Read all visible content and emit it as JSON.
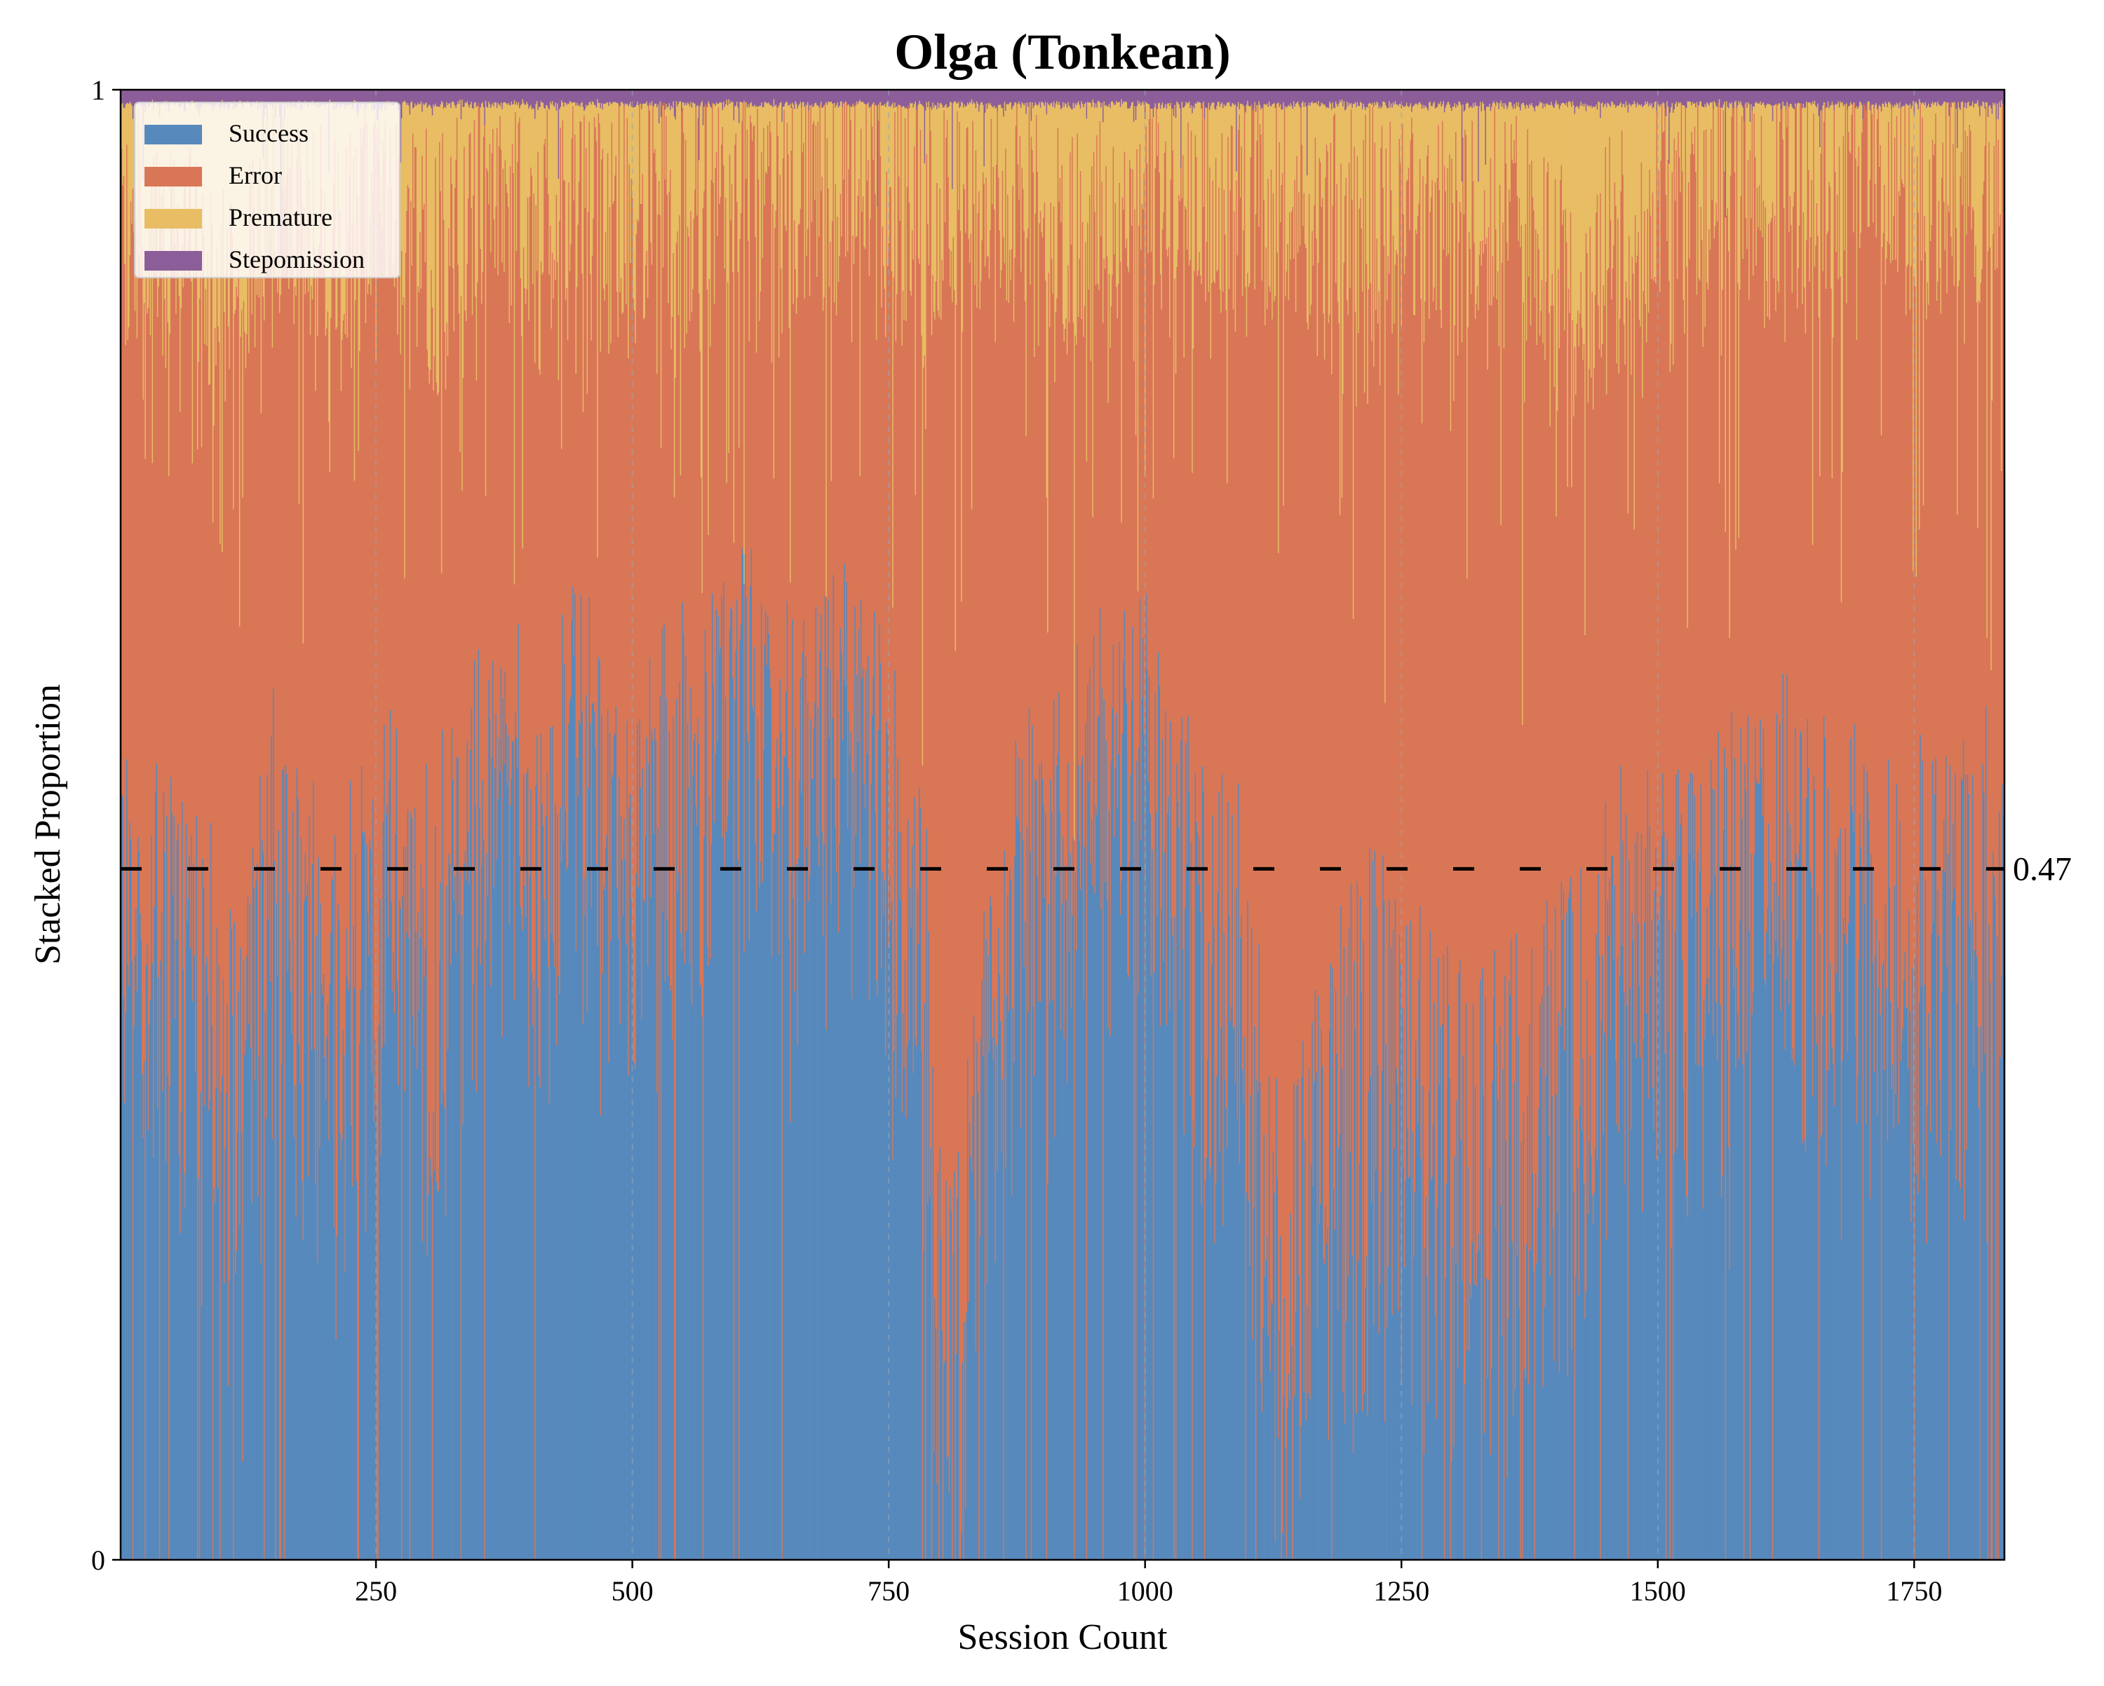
{
  "chart_data": {
    "type": "area",
    "title": "Olga (Tonkean)",
    "xlabel": "Session Count",
    "ylabel": "Stacked Proportion",
    "xlim": [
      1,
      1838
    ],
    "ylim": [
      0,
      1
    ],
    "xticks": [
      250,
      500,
      750,
      1000,
      1250,
      1500,
      1750
    ],
    "xtick_labels": [
      "250",
      "500",
      "750",
      "1000",
      "1250",
      "1500",
      "1750"
    ],
    "yticks": [
      0,
      1
    ],
    "ytick_labels": [
      "0",
      "1"
    ],
    "reference_line": {
      "y": 0.47,
      "label": "0.47",
      "style": "dashed",
      "color": "#000000"
    },
    "vertical_guides": [
      250,
      500,
      750,
      1000,
      1250,
      1500,
      1750
    ],
    "legend_position": "top-left",
    "series_colors": {
      "Success": "#5789bc",
      "Error": "#d97656",
      "Premature": "#e8bd64",
      "Stepomission": "#8c5e99"
    },
    "series_names": [
      "Success",
      "Error",
      "Premature",
      "Stepomission"
    ],
    "profile": {
      "x": [
        1,
        30,
        60,
        90,
        120,
        150,
        180,
        210,
        240,
        270,
        300,
        330,
        360,
        390,
        420,
        450,
        480,
        510,
        540,
        570,
        600,
        630,
        660,
        690,
        720,
        750,
        780,
        800,
        820,
        850,
        880,
        910,
        940,
        970,
        1000,
        1030,
        1060,
        1090,
        1120,
        1150,
        1180,
        1210,
        1240,
        1270,
        1300,
        1330,
        1360,
        1390,
        1420,
        1450,
        1480,
        1510,
        1540,
        1570,
        1600,
        1630,
        1660,
        1690,
        1720,
        1750,
        1780,
        1810,
        1838
      ],
      "success": [
        0.45,
        0.4,
        0.42,
        0.35,
        0.3,
        0.48,
        0.4,
        0.36,
        0.42,
        0.45,
        0.38,
        0.47,
        0.52,
        0.5,
        0.48,
        0.55,
        0.45,
        0.5,
        0.52,
        0.55,
        0.6,
        0.55,
        0.52,
        0.58,
        0.55,
        0.5,
        0.45,
        0.2,
        0.1,
        0.4,
        0.45,
        0.48,
        0.5,
        0.52,
        0.55,
        0.5,
        0.42,
        0.4,
        0.25,
        0.2,
        0.3,
        0.32,
        0.35,
        0.3,
        0.28,
        0.3,
        0.25,
        0.32,
        0.35,
        0.4,
        0.45,
        0.4,
        0.42,
        0.45,
        0.5,
        0.48,
        0.45,
        0.45,
        0.4,
        0.42,
        0.4,
        0.45,
        0.45
      ],
      "error": [
        0.45,
        0.5,
        0.48,
        0.5,
        0.55,
        0.45,
        0.5,
        0.52,
        0.48,
        0.45,
        0.5,
        0.43,
        0.4,
        0.4,
        0.42,
        0.35,
        0.45,
        0.42,
        0.4,
        0.38,
        0.33,
        0.36,
        0.4,
        0.35,
        0.38,
        0.42,
        0.47,
        0.7,
        0.8,
        0.5,
        0.47,
        0.42,
        0.38,
        0.38,
        0.37,
        0.42,
        0.5,
        0.52,
        0.67,
        0.72,
        0.6,
        0.58,
        0.55,
        0.6,
        0.62,
        0.6,
        0.65,
        0.55,
        0.5,
        0.48,
        0.45,
        0.52,
        0.5,
        0.48,
        0.42,
        0.45,
        0.48,
        0.47,
        0.52,
        0.5,
        0.52,
        0.48,
        0.48
      ],
      "premature": [
        0.09,
        0.09,
        0.09,
        0.14,
        0.14,
        0.06,
        0.09,
        0.11,
        0.09,
        0.09,
        0.11,
        0.09,
        0.07,
        0.09,
        0.09,
        0.09,
        0.09,
        0.07,
        0.07,
        0.06,
        0.06,
        0.08,
        0.07,
        0.06,
        0.06,
        0.07,
        0.07,
        0.09,
        0.09,
        0.09,
        0.07,
        0.09,
        0.11,
        0.09,
        0.07,
        0.07,
        0.07,
        0.07,
        0.07,
        0.07,
        0.09,
        0.09,
        0.09,
        0.09,
        0.09,
        0.09,
        0.09,
        0.12,
        0.14,
        0.11,
        0.09,
        0.07,
        0.07,
        0.06,
        0.07,
        0.06,
        0.06,
        0.07,
        0.07,
        0.07,
        0.07,
        0.06,
        0.06
      ],
      "stepomission": [
        0.01,
        0.01,
        0.01,
        0.01,
        0.01,
        0.01,
        0.01,
        0.01,
        0.01,
        0.01,
        0.01,
        0.01,
        0.01,
        0.01,
        0.01,
        0.01,
        0.01,
        0.01,
        0.01,
        0.01,
        0.01,
        0.01,
        0.01,
        0.01,
        0.01,
        0.01,
        0.01,
        0.01,
        0.01,
        0.01,
        0.01,
        0.01,
        0.01,
        0.01,
        0.01,
        0.01,
        0.01,
        0.01,
        0.01,
        0.01,
        0.01,
        0.01,
        0.01,
        0.01,
        0.01,
        0.01,
        0.01,
        0.01,
        0.01,
        0.01,
        0.01,
        0.01,
        0.01,
        0.01,
        0.01,
        0.01,
        0.01,
        0.01,
        0.01,
        0.01,
        0.01,
        0.01,
        0.01
      ]
    }
  }
}
